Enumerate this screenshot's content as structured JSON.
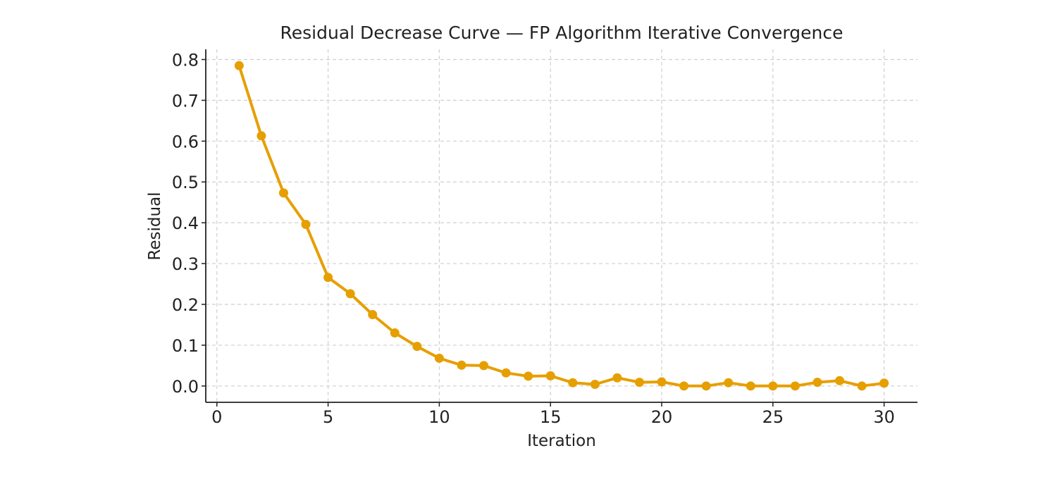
{
  "chart_data": {
    "type": "line",
    "title": "Residual Decrease Curve — FP Algorithm Iterative Convergence",
    "xlabel": "Iteration",
    "ylabel": "Residual",
    "xlim": [
      -0.5,
      31.5
    ],
    "ylim": [
      -0.04,
      0.825
    ],
    "xticks": [
      0,
      5,
      10,
      15,
      20,
      25,
      30
    ],
    "xtick_labels": [
      "0",
      "5",
      "10",
      "15",
      "20",
      "25",
      "30"
    ],
    "yticks": [
      0.0,
      0.1,
      0.2,
      0.3,
      0.4,
      0.5,
      0.6,
      0.7,
      0.8
    ],
    "ytick_labels": [
      "0.0",
      "0.1",
      "0.2",
      "0.3",
      "0.4",
      "0.5",
      "0.6",
      "0.7",
      "0.8"
    ],
    "grid": true,
    "series": [
      {
        "name": "Residual",
        "color": "#E69F00",
        "x": [
          1,
          2,
          3,
          4,
          5,
          6,
          7,
          8,
          9,
          10,
          11,
          12,
          13,
          14,
          15,
          16,
          17,
          18,
          19,
          20,
          21,
          22,
          23,
          24,
          25,
          26,
          27,
          28,
          29,
          30
        ],
        "values": [
          0.785,
          0.613,
          0.473,
          0.396,
          0.266,
          0.226,
          0.175,
          0.13,
          0.097,
          0.068,
          0.051,
          0.05,
          0.032,
          0.024,
          0.025,
          0.008,
          0.004,
          0.02,
          0.009,
          0.01,
          0.0,
          0.0,
          0.008,
          0.0,
          0.0,
          0.0,
          0.009,
          0.013,
          0.0,
          0.007
        ]
      }
    ]
  }
}
